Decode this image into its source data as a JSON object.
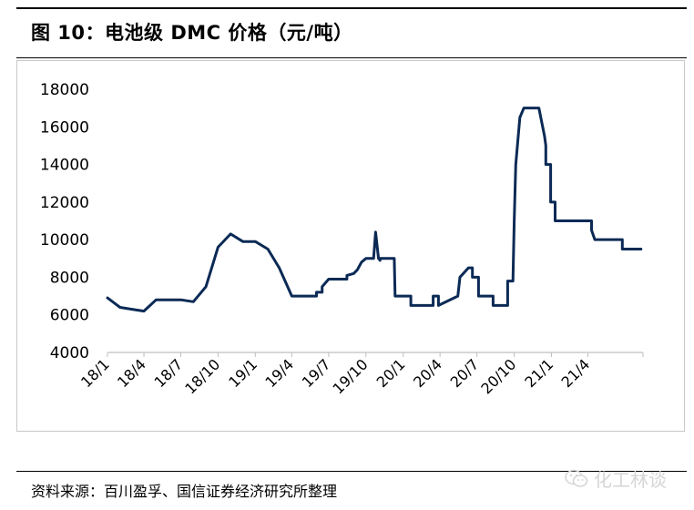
{
  "header": {
    "title": "图 10：电池级 DMC 价格（元/吨）"
  },
  "footer": {
    "source": "资料来源：百川盈孚、国信证券经济研究所整理"
  },
  "watermark": {
    "text": "化工林谈",
    "icon": "wechat-icon"
  },
  "colors": {
    "line": "#0B2A55",
    "axis": "#bfbfbf",
    "text": "#000000"
  },
  "chart_data": {
    "type": "line",
    "title": "图 10：电池级 DMC 价格（元/吨）",
    "xlabel": "",
    "ylabel": "",
    "ylim": [
      4000,
      18000
    ],
    "yticks": [
      4000,
      6000,
      8000,
      10000,
      12000,
      14000,
      16000,
      18000
    ],
    "xlim": [
      "2018-01-01",
      "2021-08-15"
    ],
    "xticks": [
      "18/1",
      "18/4",
      "18/7",
      "18/10",
      "19/1",
      "19/4",
      "19/7",
      "19/10",
      "20/1",
      "20/4",
      "20/7",
      "20/10",
      "21/1",
      "21/4"
    ],
    "grid": false,
    "legend": "none",
    "series": [
      {
        "name": "",
        "color": "#0B2A55",
        "x": [
          "2018-01-01",
          "2018-02-01",
          "2018-03-01",
          "2018-04-01",
          "2018-05-01",
          "2018-06-01",
          "2018-07-01",
          "2018-08-01",
          "2018-09-01",
          "2018-10-01",
          "2018-11-01",
          "2018-12-01",
          "2019-01-01",
          "2019-02-01",
          "2019-03-01",
          "2019-04-01",
          "2019-05-01",
          "2019-06-01",
          "2019-06-01",
          "2019-06-15",
          "2019-06-15",
          "2019-07-01",
          "2019-08-01",
          "2019-08-15",
          "2019-08-15",
          "2019-09-01",
          "2019-09-10",
          "2019-09-20",
          "2019-10-01",
          "2019-10-20",
          "2019-10-25",
          "2019-11-01",
          "2019-11-02",
          "2019-11-05",
          "2019-11-05",
          "2019-11-15",
          "2019-12-10",
          "2019-12-12",
          "2019-12-31",
          "2020-01-01",
          "2020-01-20",
          "2020-01-20",
          "2020-03-15",
          "2020-03-15",
          "2020-03-28",
          "2020-03-28",
          "2020-05-15",
          "2020-05-15",
          "2020-05-20",
          "2020-06-10",
          "2020-06-10",
          "2020-06-20",
          "2020-06-20",
          "2020-07-05",
          "2020-07-05",
          "2020-08-10",
          "2020-08-10",
          "2020-09-15",
          "2020-09-15",
          "2020-09-18",
          "2020-09-22",
          "2020-09-28",
          "2020-10-01",
          "2020-10-05",
          "2020-10-15",
          "2020-10-25",
          "2020-11-01",
          "2020-11-20",
          "2020-12-01",
          "2020-12-15",
          "2020-12-18",
          "2020-12-18",
          "2020-12-30",
          "2020-12-30",
          "2021-01-10",
          "2021-01-10",
          "2021-02-05",
          "2021-02-05",
          "2021-04-10",
          "2021-04-10",
          "2021-04-18",
          "2021-04-18",
          "2021-06-25",
          "2021-06-25",
          "2021-08-10"
        ],
        "values": [
          6900,
          6400,
          6300,
          6200,
          6800,
          6800,
          6800,
          6700,
          7500,
          9600,
          10300,
          9900,
          9900,
          9500,
          8500,
          7000,
          7000,
          7000,
          7200,
          7200,
          7500,
          7900,
          7900,
          7900,
          8100,
          8200,
          8400,
          8800,
          9000,
          9000,
          10400,
          9000,
          9000,
          8900,
          9000,
          9000,
          9000,
          7000,
          7000,
          7000,
          7000,
          6500,
          6500,
          7000,
          7000,
          6500,
          7000,
          7000,
          8000,
          8500,
          8500,
          8500,
          8000,
          8000,
          7000,
          7000,
          6500,
          6500,
          7800,
          7800,
          7800,
          7800,
          11000,
          14000,
          16500,
          17000,
          17000,
          17000,
          17000,
          15500,
          15000,
          14000,
          14000,
          12000,
          12000,
          11000,
          11000,
          11000,
          11000,
          10500,
          10000,
          10000,
          10000,
          9500,
          9500
        ]
      }
    ]
  }
}
